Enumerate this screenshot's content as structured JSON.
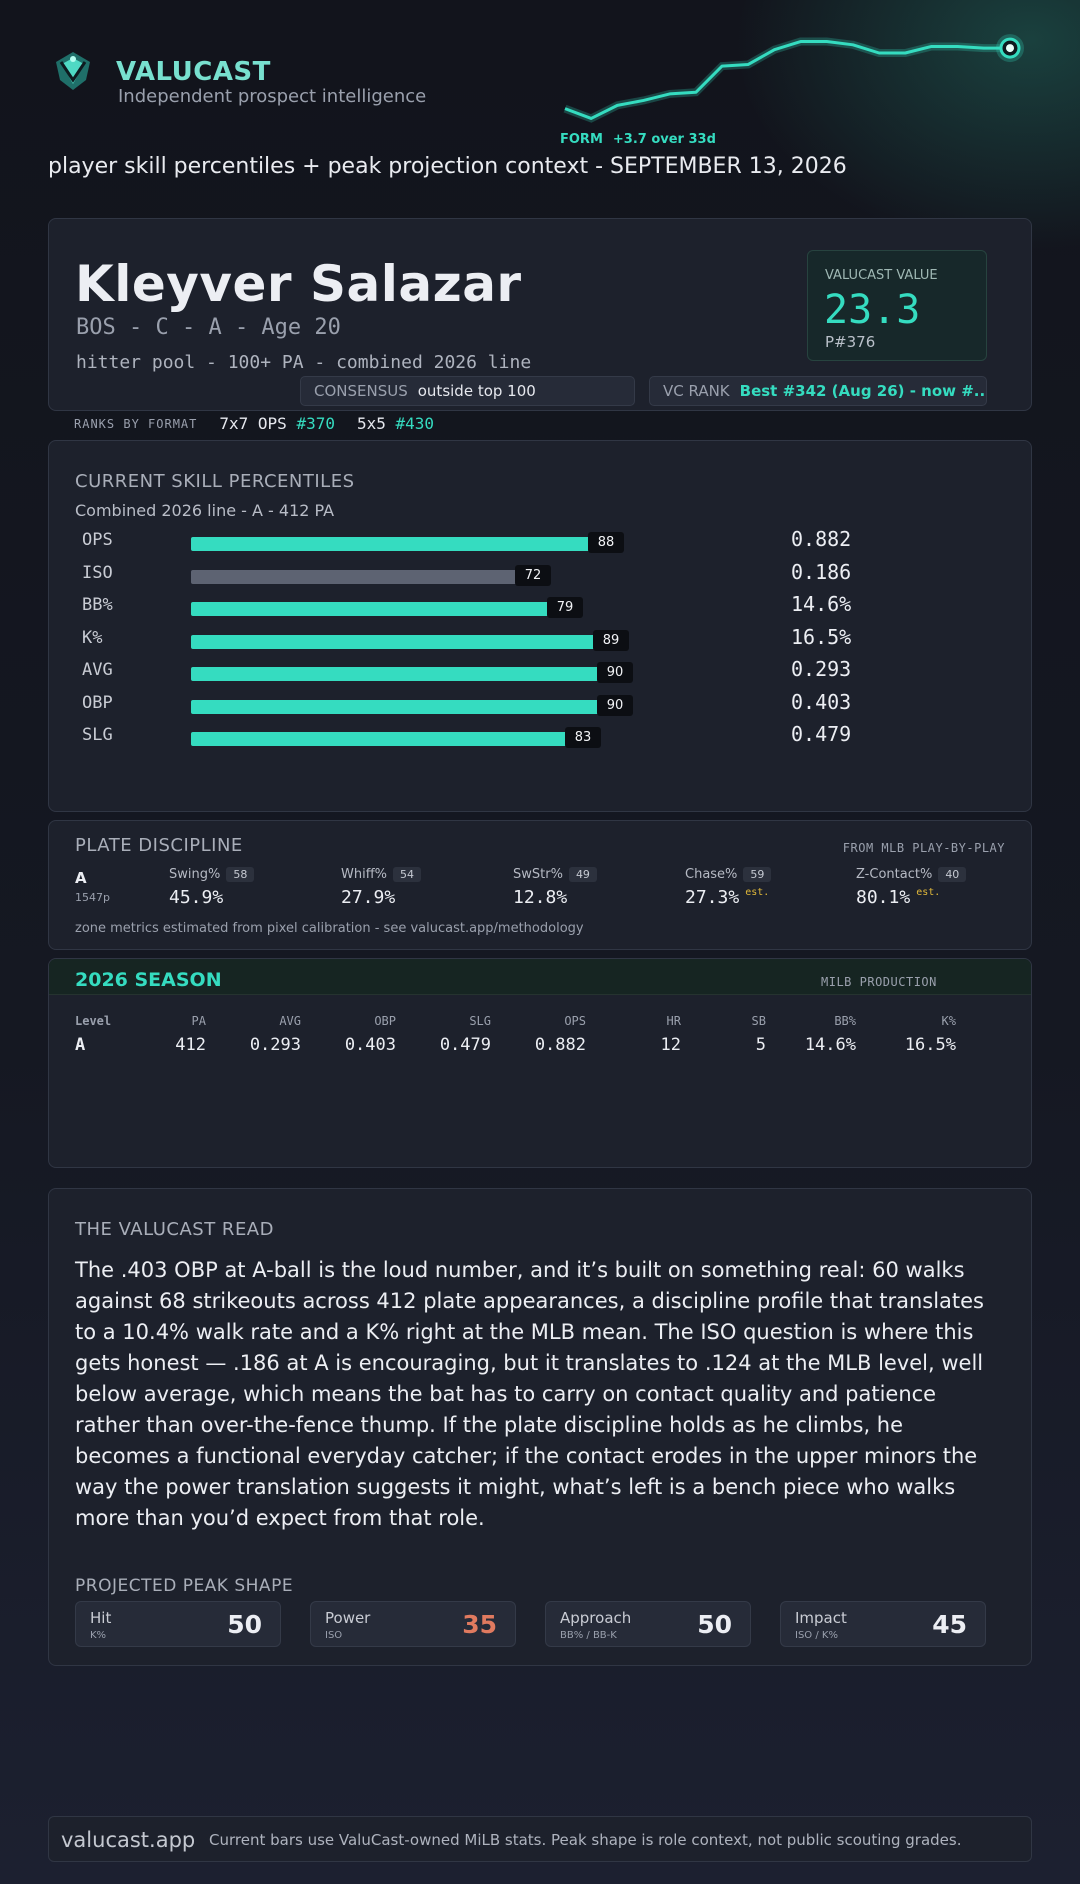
{
  "brand": {
    "name": "VALUCAST",
    "tagline": "Independent prospect intelligence",
    "logo_icon": "valucast-logo-icon"
  },
  "form": {
    "label": "FORM",
    "change": "+3.7 over 33d",
    "trend": [
      0,
      -0.6,
      0.2,
      0.5,
      0.9,
      1.0,
      2.6,
      2.7,
      3.6,
      4.1,
      4.1,
      3.9,
      3.4,
      3.4,
      3.8,
      3.8,
      3.7,
      3.7
    ],
    "color": "#35dcc0"
  },
  "subtitle": "player skill percentiles + peak projection context - SEPTEMBER 13, 2026",
  "player": {
    "name": "Kleyver Salazar",
    "line": "BOS - C - A - Age 20",
    "pool": "hitter pool - 100+ PA - combined 2026 line",
    "value_label": "VALUCAST VALUE",
    "value": "23.3",
    "value_rank": "P#376",
    "consensus_label": "CONSENSUS",
    "consensus_value": "outside top 100",
    "vc_rank_label": "VC RANK",
    "vc_rank_value": "Best #342 (Aug 26) - now #..."
  },
  "formats": {
    "label": "RANKS BY FORMAT",
    "items": [
      {
        "name": "7x7 OPS",
        "rank": "#370"
      },
      {
        "name": "5x5",
        "rank": "#430"
      }
    ]
  },
  "skills": {
    "title": "CURRENT SKILL PERCENTILES",
    "subtitle": "Combined 2026 line - A - 412 PA",
    "rows": [
      {
        "label": "OPS",
        "pct": 88,
        "value": "0.882",
        "color": "teal"
      },
      {
        "label": "ISO",
        "pct": 72,
        "value": "0.186",
        "color": "gray"
      },
      {
        "label": "BB%",
        "pct": 79,
        "value": "14.6%",
        "color": "teal"
      },
      {
        "label": "K%",
        "pct": 89,
        "value": "16.5%",
        "color": "teal"
      },
      {
        "label": "AVG",
        "pct": 90,
        "value": "0.293",
        "color": "teal"
      },
      {
        "label": "OBP",
        "pct": 90,
        "value": "0.403",
        "color": "teal"
      },
      {
        "label": "SLG",
        "pct": 83,
        "value": "0.479",
        "color": "teal"
      }
    ]
  },
  "plate": {
    "title": "PLATE DISCIPLINE",
    "source": "FROM MLB PLAY-BY-PLAY",
    "level": "A",
    "sample": "1547p",
    "metrics": [
      {
        "name": "Swing%",
        "pct": "58",
        "value": "45.9%",
        "est": ""
      },
      {
        "name": "Whiff%",
        "pct": "54",
        "value": "27.9%",
        "est": ""
      },
      {
        "name": "SwStr%",
        "pct": "49",
        "value": "12.8%",
        "est": ""
      },
      {
        "name": "Chase%",
        "pct": "59",
        "value": "27.3%",
        "est": "est."
      },
      {
        "name": "Z-Contact%",
        "pct": "40",
        "value": "80.1%",
        "est": "est."
      }
    ],
    "note": "zone metrics estimated from pixel calibration - see valucast.app/methodology"
  },
  "season": {
    "title": "2026 SEASON",
    "source": "MILB PRODUCTION",
    "headers": [
      "Level",
      "PA",
      "AVG",
      "OBP",
      "SLG",
      "OPS",
      "HR",
      "SB",
      "BB%",
      "K%"
    ],
    "rows": [
      [
        "A",
        "412",
        "0.293",
        "0.403",
        "0.479",
        "0.882",
        "12",
        "5",
        "14.6%",
        "16.5%"
      ]
    ]
  },
  "read": {
    "title": "THE VALUCAST READ",
    "body": "The .403 OBP at A-ball is the loud number, and it’s built on something real: 60 walks against 68 strikeouts across 412 plate appearances, a discipline profile that translates to a 10.4% walk rate and a K% right at the MLB mean. The ISO question is where this gets honest — .186 at A is encouraging, but it translates to .124 at the MLB level, well below average, which means the bat has to carry on contact quality and patience rather than over-the-fence thump. If the plate discipline holds as he climbs, he becomes a functional everyday catcher; if the contact erodes in the upper minors the way the power translation suggests it might, what’s left is a bench piece who walks more than you’d expect from that role.",
    "peak_title": "PROJECTED PEAK SHAPE",
    "peak": [
      {
        "label": "Hit",
        "sub": "K%",
        "value": "50",
        "low": false
      },
      {
        "label": "Power",
        "sub": "ISO",
        "value": "35",
        "low": true
      },
      {
        "label": "Approach",
        "sub": "BB% / BB-K",
        "value": "50",
        "low": false
      },
      {
        "label": "Impact",
        "sub": "ISO / K%",
        "value": "45",
        "low": false
      }
    ]
  },
  "footer": {
    "site": "valucast.app",
    "note": "Current bars use ValuCast-owned MiLB stats. Peak shape is role context, not public scouting grades."
  }
}
